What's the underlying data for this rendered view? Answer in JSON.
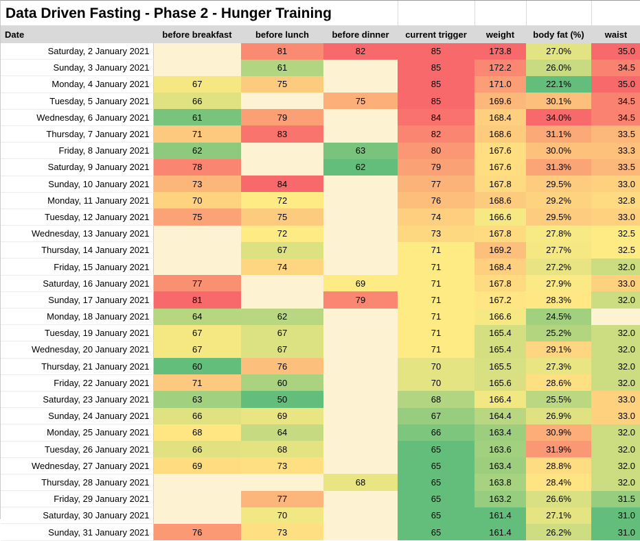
{
  "title": "Data Driven Fasting - Phase 2 - Hunger Training",
  "colors": {
    "scale_low": "#63BE7B",
    "scale_mid": "#FFEB84",
    "scale_high": "#F8696B",
    "blank_cell": "#FDF3D2",
    "header_bg": "#D9D9D9",
    "date_bg": "#FFFFFF"
  },
  "columns": [
    {
      "key": "date",
      "label": "Date",
      "type": "date"
    },
    {
      "key": "breakfast",
      "label": "before breakfast",
      "type": "scale",
      "format": "int"
    },
    {
      "key": "lunch",
      "label": "before lunch",
      "type": "scale",
      "format": "int"
    },
    {
      "key": "dinner",
      "label": "before dinner",
      "type": "scale",
      "format": "int"
    },
    {
      "key": "trigger",
      "label": "current trigger",
      "type": "scale",
      "format": "int"
    },
    {
      "key": "weight",
      "label": "weight",
      "type": "scale",
      "format": "1dp"
    },
    {
      "key": "bodyfat",
      "label": "body fat (%)",
      "type": "scale",
      "format": "pct"
    },
    {
      "key": "waist",
      "label": "waist",
      "type": "scale",
      "format": "1dp"
    }
  ],
  "rows": [
    [
      "Saturday, 2 January 2021",
      null,
      81,
      82,
      85,
      173.8,
      27.0,
      35.0
    ],
    [
      "Sunday, 3 January 2021",
      null,
      61,
      null,
      85,
      172.2,
      26.0,
      34.5
    ],
    [
      "Monday, 4 January 2021",
      67,
      75,
      null,
      85,
      171.0,
      22.1,
      35.0
    ],
    [
      "Tuesday, 5 January 2021",
      66,
      null,
      75,
      85,
      169.6,
      30.1,
      34.5
    ],
    [
      "Wednesday, 6 January 2021",
      61,
      79,
      null,
      84,
      168.4,
      34.0,
      34.5
    ],
    [
      "Thursday, 7 January 2021",
      71,
      83,
      null,
      82,
      168.6,
      31.1,
      33.5
    ],
    [
      "Friday, 8 January 2021",
      62,
      null,
      63,
      80,
      167.6,
      30.0,
      33.3
    ],
    [
      "Saturday, 9 January 2021",
      78,
      null,
      62,
      79,
      167.6,
      31.3,
      33.5
    ],
    [
      "Sunday, 10 January 2021",
      73,
      84,
      null,
      77,
      167.8,
      29.5,
      33.0
    ],
    [
      "Monday, 11 January 2021",
      70,
      72,
      null,
      76,
      168.6,
      29.2,
      32.8
    ],
    [
      "Tuesday, 12 January 2021",
      75,
      75,
      null,
      74,
      166.6,
      29.5,
      33.0
    ],
    [
      "Wednesday, 13 January 2021",
      null,
      72,
      null,
      73,
      167.8,
      27.8,
      32.5
    ],
    [
      "Thursday, 14 January 2021",
      null,
      67,
      null,
      71,
      169.2,
      27.7,
      32.5
    ],
    [
      "Friday, 15 January 2021",
      null,
      74,
      null,
      71,
      168.4,
      27.2,
      32.0
    ],
    [
      "Saturday, 16 January 2021",
      77,
      null,
      69,
      71,
      167.8,
      27.9,
      33.0
    ],
    [
      "Sunday, 17 January 2021",
      81,
      null,
      79,
      71,
      167.2,
      28.3,
      32.0
    ],
    [
      "Monday, 18 January 2021",
      64,
      62,
      null,
      71,
      166.6,
      24.5,
      null
    ],
    [
      "Tuesday, 19 January 2021",
      67,
      67,
      null,
      71,
      165.4,
      25.2,
      32.0
    ],
    [
      "Wednesday, 20 January 2021",
      67,
      67,
      null,
      71,
      165.4,
      29.1,
      32.0
    ],
    [
      "Thursday, 21 January 2021",
      60,
      76,
      null,
      70,
      165.5,
      27.3,
      32.0
    ],
    [
      "Friday, 22 January 2021",
      71,
      60,
      null,
      70,
      165.6,
      28.6,
      32.0
    ],
    [
      "Saturday, 23 January 2021",
      63,
      50,
      null,
      68,
      166.4,
      25.5,
      33.0
    ],
    [
      "Sunday, 24 January 2021",
      66,
      69,
      null,
      67,
      164.4,
      26.9,
      33.0
    ],
    [
      "Monday, 25 January 2021",
      68,
      64,
      null,
      66,
      163.4,
      30.9,
      32.0
    ],
    [
      "Tuesday, 26 January 2021",
      66,
      68,
      null,
      65,
      163.6,
      31.9,
      32.0
    ],
    [
      "Wednesday, 27 January 2021",
      69,
      73,
      null,
      65,
      163.4,
      28.8,
      32.0
    ],
    [
      "Thursday, 28 January 2021",
      null,
      null,
      68,
      65,
      163.8,
      28.4,
      32.0
    ],
    [
      "Friday, 29 January 2021",
      null,
      77,
      null,
      65,
      163.2,
      26.6,
      31.5
    ],
    [
      "Saturday, 30 January 2021",
      null,
      70,
      null,
      65,
      161.4,
      27.1,
      31.0
    ],
    [
      "Sunday, 31 January 2021",
      76,
      73,
      null,
      65,
      161.4,
      26.2,
      31.0
    ]
  ]
}
